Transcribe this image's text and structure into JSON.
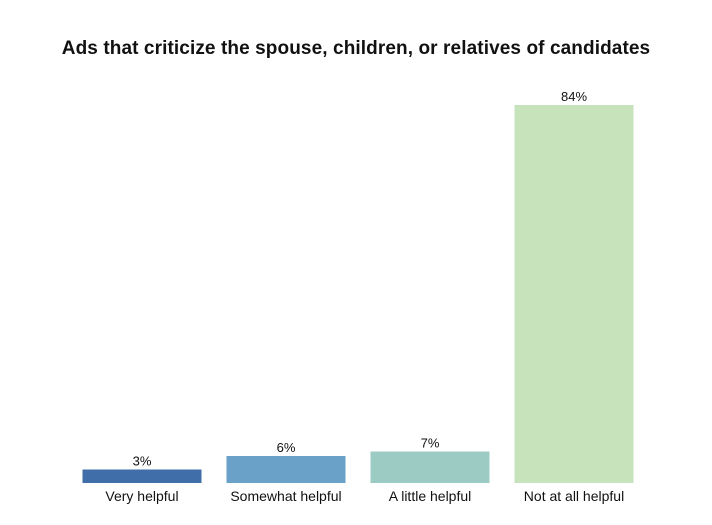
{
  "chart_data": {
    "type": "bar",
    "title": "Ads that criticize the spouse, children, or relatives of candidates",
    "categories": [
      "Very helpful",
      "Somewhat helpful",
      "A little helpful",
      "Not at all helpful"
    ],
    "values": [
      3,
      6,
      7,
      84
    ],
    "value_labels": [
      "3%",
      "6%",
      "7%",
      "84%"
    ],
    "colors": [
      "#3f6ea8",
      "#6aa1c8",
      "#9ccbc3",
      "#c6e3bb"
    ],
    "xlabel": "",
    "ylabel": "",
    "ylim": [
      0,
      84
    ],
    "grid": false,
    "legend": "none"
  }
}
